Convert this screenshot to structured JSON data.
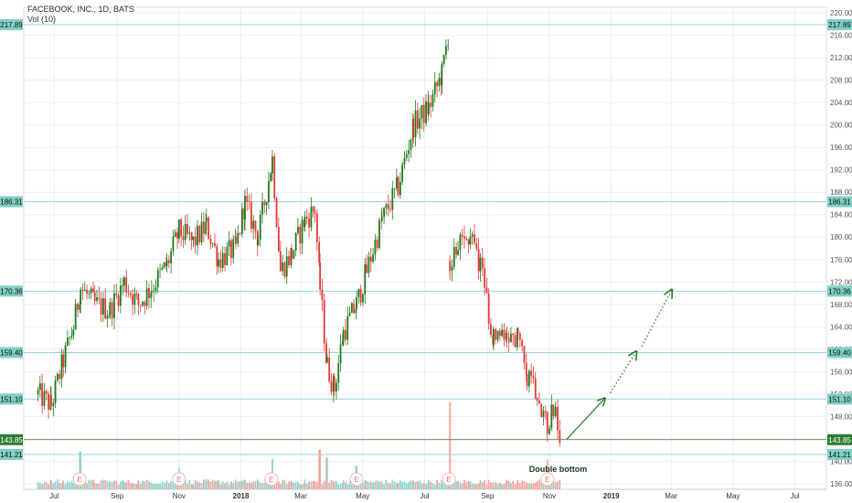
{
  "header": {
    "title": "FACEBOOK, INC., 1D, BATS",
    "indicator": "Vol (10)"
  },
  "colors": {
    "up": "#1e7b1e",
    "down": "#e53935",
    "vol_up": "#8fd4cd",
    "vol_down": "#f2a7a1",
    "level_line": "#9ad3de",
    "level_tag": "#7fcfc4",
    "current_tag": "#2e7d32",
    "grid": "#eeeeee",
    "arrow": "#1e7b1e"
  },
  "chart_data": {
    "type": "candlestick",
    "title": "FACEBOOK, INC., 1D, BATS",
    "ylim": [
      135,
      221
    ],
    "y_ticks": [
      "136.00",
      "140.00",
      "144.00",
      "148.00",
      "152.00",
      "156.00",
      "160.00",
      "164.00",
      "168.00",
      "172.00",
      "176.00",
      "180.00",
      "184.00",
      "188.00",
      "192.00",
      "196.00",
      "200.00",
      "204.00",
      "208.00",
      "212.00",
      "216.00",
      "220.00"
    ],
    "x_ticks": [
      {
        "label": "Jul",
        "date": "2017-07-01"
      },
      {
        "label": "Sep",
        "date": "2017-09-01"
      },
      {
        "label": "Nov",
        "date": "2017-11-01"
      },
      {
        "label": "2018",
        "date": "2018-01-01"
      },
      {
        "label": "Mar",
        "date": "2018-03-01"
      },
      {
        "label": "May",
        "date": "2018-05-01"
      },
      {
        "label": "Jul",
        "date": "2018-07-01"
      },
      {
        "label": "Sep",
        "date": "2018-09-01"
      },
      {
        "label": "Nov",
        "date": "2018-11-01"
      },
      {
        "label": "2019",
        "date": "2019-01-01"
      },
      {
        "label": "Mar",
        "date": "2019-03-01"
      },
      {
        "label": "May",
        "date": "2019-05-01"
      },
      {
        "label": "Jul",
        "date": "2019-07-01"
      }
    ],
    "horizontal_levels": [
      "217.89",
      "186.31",
      "170.36",
      "159.40",
      "151.10",
      "141.21"
    ],
    "current_price": "143.85",
    "price_path": [
      {
        "date": "2017-06-15",
        "close": 152
      },
      {
        "date": "2017-06-28",
        "close": 150
      },
      {
        "date": "2017-07-10",
        "close": 158
      },
      {
        "date": "2017-07-20",
        "close": 164
      },
      {
        "date": "2017-07-27",
        "close": 171
      },
      {
        "date": "2017-08-10",
        "close": 168
      },
      {
        "date": "2017-08-25",
        "close": 167
      },
      {
        "date": "2017-09-08",
        "close": 172
      },
      {
        "date": "2017-09-22",
        "close": 168
      },
      {
        "date": "2017-10-05",
        "close": 171
      },
      {
        "date": "2017-10-20",
        "close": 175
      },
      {
        "date": "2017-11-01",
        "close": 181
      },
      {
        "date": "2017-11-15",
        "close": 179
      },
      {
        "date": "2017-11-28",
        "close": 182
      },
      {
        "date": "2017-12-10",
        "close": 176
      },
      {
        "date": "2017-12-27",
        "close": 178
      },
      {
        "date": "2018-01-05",
        "close": 186
      },
      {
        "date": "2018-01-18",
        "close": 180
      },
      {
        "date": "2018-02-01",
        "close": 194
      },
      {
        "date": "2018-02-09",
        "close": 174
      },
      {
        "date": "2018-02-20",
        "close": 177
      },
      {
        "date": "2018-03-05",
        "close": 183
      },
      {
        "date": "2018-03-15",
        "close": 185
      },
      {
        "date": "2018-03-20",
        "close": 171
      },
      {
        "date": "2018-03-27",
        "close": 157
      },
      {
        "date": "2018-04-03",
        "close": 153
      },
      {
        "date": "2018-04-12",
        "close": 163
      },
      {
        "date": "2018-04-25",
        "close": 168
      },
      {
        "date": "2018-05-05",
        "close": 174
      },
      {
        "date": "2018-05-20",
        "close": 183
      },
      {
        "date": "2018-06-05",
        "close": 189
      },
      {
        "date": "2018-06-20",
        "close": 200
      },
      {
        "date": "2018-07-05",
        "close": 203
      },
      {
        "date": "2018-07-18",
        "close": 209
      },
      {
        "date": "2018-07-25",
        "close": 217
      },
      {
        "date": "2018-07-26",
        "close": 176
      },
      {
        "date": "2018-08-03",
        "close": 178
      },
      {
        "date": "2018-08-15",
        "close": 181
      },
      {
        "date": "2018-08-25",
        "close": 175
      },
      {
        "date": "2018-09-07",
        "close": 162
      },
      {
        "date": "2018-09-20",
        "close": 163
      },
      {
        "date": "2018-10-01",
        "close": 162
      },
      {
        "date": "2018-10-10",
        "close": 155
      },
      {
        "date": "2018-10-20",
        "close": 153
      },
      {
        "date": "2018-10-30",
        "close": 146
      },
      {
        "date": "2018-11-05",
        "close": 150
      },
      {
        "date": "2018-11-12",
        "close": 143
      }
    ],
    "volume": {
      "base": [
        0.12,
        0.25
      ],
      "spikes": [
        {
          "date": "2017-07-27",
          "value": 0.95
        },
        {
          "date": "2017-11-01",
          "value": 0.55
        },
        {
          "date": "2018-02-01",
          "value": 0.78
        },
        {
          "date": "2018-03-20",
          "value": 1.0
        },
        {
          "date": "2018-03-26",
          "value": 0.8
        },
        {
          "date": "2018-04-25",
          "value": 0.6
        },
        {
          "date": "2018-07-26",
          "value": 2.2
        },
        {
          "date": "2018-10-30",
          "value": 0.75
        }
      ]
    },
    "earnings_markers": [
      {
        "date": "2017-07-26",
        "label": "E"
      },
      {
        "date": "2017-11-01",
        "label": "E"
      },
      {
        "date": "2018-01-31",
        "label": "E"
      },
      {
        "date": "2018-04-25",
        "label": "E"
      },
      {
        "date": "2018-07-25",
        "label": "E"
      },
      {
        "date": "2018-10-30",
        "label": "E"
      }
    ],
    "annotations": [
      {
        "text": "Double bottom",
        "date": "2018-10-12",
        "price": 138.1
      }
    ],
    "projection_solid": {
      "from": {
        "date": "2018-11-18",
        "price": 143.9
      },
      "to": {
        "date": "2018-12-25",
        "price": 151.1
      }
    },
    "projection_dotted": [
      {
        "from": {
          "date": "2018-12-31",
          "price": 152.2
        },
        "to": {
          "date": "2019-01-25",
          "price": 159.4
        }
      },
      {
        "from": {
          "date": "2019-01-31",
          "price": 160.5
        },
        "to": {
          "date": "2019-03-01",
          "price": 170.4
        }
      }
    ]
  }
}
